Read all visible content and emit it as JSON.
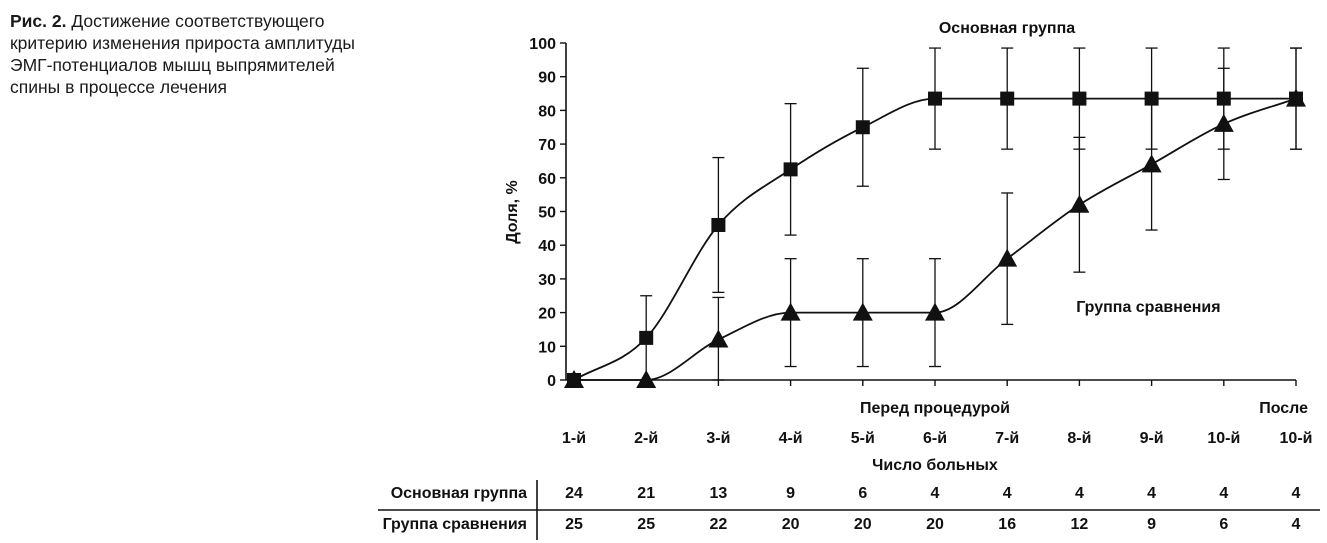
{
  "caption": {
    "label": "Рис. 2.",
    "text": "Достижение соответствующего критерию изменения прироста амплитуды ЭМГ-потенциалов мышц выпрямителей спины в процессе лечения"
  },
  "chart_data": {
    "type": "line",
    "ylabel": "Доля, %",
    "xlabel": "Число больных",
    "ylim": [
      0,
      100
    ],
    "yticks": [
      0,
      10,
      20,
      30,
      40,
      50,
      60,
      70,
      80,
      90,
      100
    ],
    "categories": [
      "1-й",
      "2-й",
      "3-й",
      "4-й",
      "5-й",
      "6-й",
      "7-й",
      "8-й",
      "9-й",
      "10-й",
      "10-й"
    ],
    "category_note_before": "Перед процедурой",
    "category_note_after": "После",
    "series": [
      {
        "name": "Основная группа",
        "marker": "square",
        "values": [
          0,
          12.5,
          46,
          62.5,
          75,
          83.5,
          83.5,
          83.5,
          83.5,
          83.5,
          83.5
        ],
        "errors": [
          0,
          12.5,
          20,
          19.5,
          17.5,
          15,
          15,
          15,
          15,
          15,
          15
        ]
      },
      {
        "name": "Группа сравнения",
        "marker": "triangle",
        "values": [
          0,
          0,
          12,
          20,
          20,
          20,
          36,
          52,
          64,
          76,
          83.5
        ],
        "errors": [
          0,
          0,
          12.5,
          16,
          16,
          16,
          19.5,
          20,
          19.5,
          16.5,
          15
        ]
      }
    ],
    "annotations": {
      "main_group": "Основная группа",
      "comparison_group": "Группа сравнения"
    },
    "counts_table": {
      "rows": [
        {
          "label": "Основная группа",
          "values": [
            24,
            21,
            13,
            9,
            6,
            4,
            4,
            4,
            4,
            4,
            4
          ]
        },
        {
          "label": "Группа сравнения",
          "values": [
            25,
            25,
            22,
            20,
            20,
            20,
            16,
            12,
            9,
            6,
            4
          ]
        }
      ]
    },
    "grid": false,
    "colors": {
      "line": "#111111",
      "marker": "#111111"
    }
  }
}
